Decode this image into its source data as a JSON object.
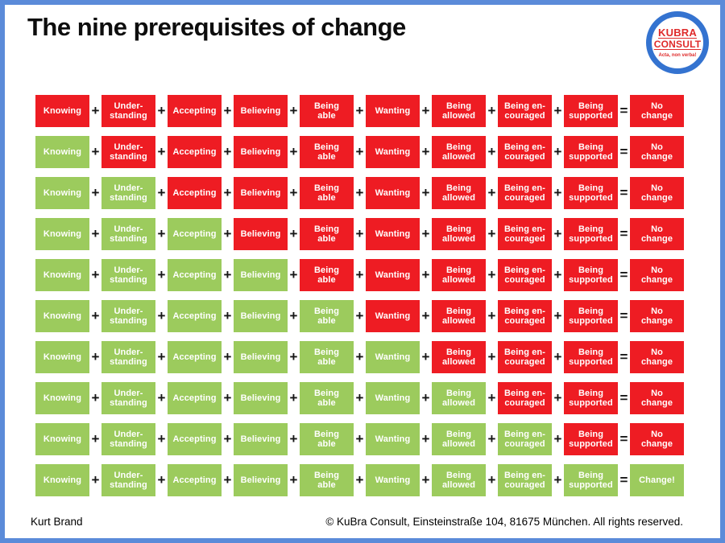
{
  "slide": {
    "title": "The nine prerequisites of change"
  },
  "logo": {
    "line1": "KUBRA",
    "line2": "CONSULT",
    "tagline": "Acta, non verba!"
  },
  "grid": {
    "prerequisites": [
      {
        "label": "Knowing",
        "lines": [
          "Knowing"
        ]
      },
      {
        "label": "Understanding",
        "lines": [
          "Under-",
          "standing"
        ]
      },
      {
        "label": "Accepting",
        "lines": [
          "Accepting"
        ]
      },
      {
        "label": "Believing",
        "lines": [
          "Believing"
        ]
      },
      {
        "label": "Being able",
        "lines": [
          "Being",
          "able"
        ]
      },
      {
        "label": "Wanting",
        "lines": [
          "Wanting"
        ]
      },
      {
        "label": "Being allowed",
        "lines": [
          "Being",
          "allowed"
        ]
      },
      {
        "label": "Being encouraged",
        "lines": [
          "Being en-",
          "couraged"
        ]
      },
      {
        "label": "Being supported",
        "lines": [
          "Being",
          "supported"
        ]
      }
    ],
    "operators": {
      "plus": "+",
      "equals": "="
    },
    "rows": [
      {
        "green_count": 0,
        "result_lines": [
          "No",
          "change"
        ],
        "result_color": "red"
      },
      {
        "green_count": 1,
        "result_lines": [
          "No",
          "change"
        ],
        "result_color": "red"
      },
      {
        "green_count": 2,
        "result_lines": [
          "No",
          "change"
        ],
        "result_color": "red"
      },
      {
        "green_count": 3,
        "result_lines": [
          "No",
          "change"
        ],
        "result_color": "red"
      },
      {
        "green_count": 4,
        "result_lines": [
          "No",
          "change"
        ],
        "result_color": "red"
      },
      {
        "green_count": 5,
        "result_lines": [
          "No",
          "change"
        ],
        "result_color": "red"
      },
      {
        "green_count": 6,
        "result_lines": [
          "No",
          "change"
        ],
        "result_color": "red"
      },
      {
        "green_count": 7,
        "result_lines": [
          "No",
          "change"
        ],
        "result_color": "red"
      },
      {
        "green_count": 8,
        "result_lines": [
          "No",
          "change"
        ],
        "result_color": "red"
      },
      {
        "green_count": 9,
        "result_lines": [
          "Change!"
        ],
        "result_color": "green"
      }
    ]
  },
  "footer": {
    "author": "Kurt Brand",
    "copyright": "© KuBra Consult, Einsteinstraße 104, 81675 München. All rights reserved."
  },
  "colors": {
    "box_red": "#EE1C23",
    "box_green": "#9CCB5D",
    "border_blue": "#5B8BD9",
    "logo_ring_blue": "#3473D0",
    "logo_text_red": "#DF2B2B",
    "box_text_white": "#FFFFFF",
    "operator_black": "#151515"
  }
}
